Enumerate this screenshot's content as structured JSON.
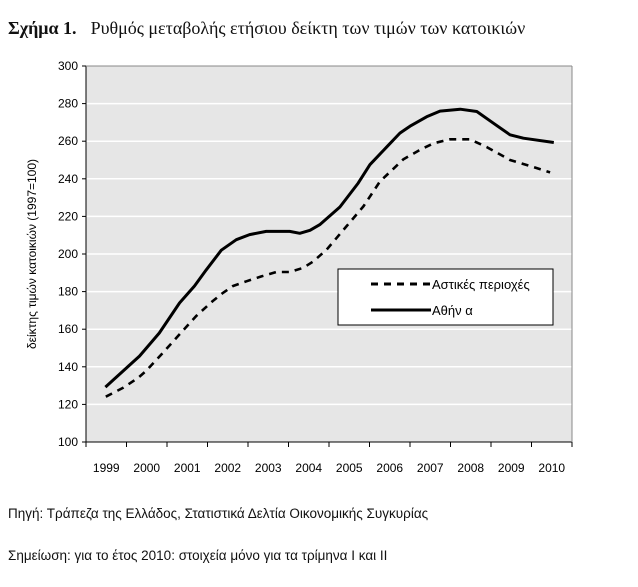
{
  "figure": {
    "label": "Σχήμα 1.",
    "title": "Ρυθμός μεταβολής ετήσιου δείκτη των τιμών των κατοικιών",
    "source": "Πηγή: Τράπεζα της Ελλάδος, Στατιστικά Δελτία Οικονομικής Συγκυρίας",
    "note": "Σημείωση:  για το έτος 2010: στοιχεία μόνο για τα τρίμηνα Ι και ΙΙ"
  },
  "chart_data": {
    "type": "line",
    "title": "",
    "xlabel": "",
    "ylabel": "δείκτης τιμών κατοικιών (1997=100)",
    "ylim": [
      100,
      300
    ],
    "yticks": [
      "100",
      "120",
      "140",
      "160",
      "180",
      "200",
      "220",
      "240",
      "260",
      "280",
      "300"
    ],
    "categories": [
      "1999",
      "2000",
      "2001",
      "2002",
      "2003",
      "2004",
      "2005",
      "2006",
      "2007",
      "2008",
      "2009",
      "2010"
    ],
    "xlim": [
      1999,
      2011
    ],
    "grid": true,
    "background": "#e6e6e6",
    "legend_position": "center-right",
    "series": [
      {
        "name": "Αστικές περιοχές",
        "style": "dashed",
        "color": "#000000",
        "x": [
          1999.49,
          1999.91,
          2000.28,
          2000.48,
          2000.9,
          2001.31,
          2001.72,
          2002.13,
          2002.38,
          2002.63,
          2002.96,
          2003.33,
          2003.7,
          2004.03,
          2004.36,
          2004.61,
          2004.94,
          2005.43,
          2005.85,
          2006.26,
          2006.84,
          2007.25,
          2007.58,
          2007.99,
          2008.48,
          2008.9,
          2009.47,
          2010.05,
          2010.46
        ],
        "y": [
          124.1,
          128.8,
          134.0,
          137.7,
          147.5,
          157.3,
          167.0,
          175.0,
          179.3,
          183.0,
          185.5,
          188.1,
          190.4,
          190.4,
          192.6,
          196.0,
          202.3,
          214.7,
          225.3,
          238.6,
          250.4,
          255.4,
          258.9,
          261.0,
          261.0,
          256.8,
          250.0,
          246.2,
          243.4
        ]
      },
      {
        "name": "Αθήν α",
        "style": "solid",
        "color": "#000000",
        "x": [
          1999.48,
          2000.32,
          2000.81,
          2001.31,
          2001.68,
          2001.97,
          2002.34,
          2002.71,
          2003.04,
          2003.45,
          2004.03,
          2004.28,
          2004.53,
          2004.77,
          2005.27,
          2005.72,
          2006.01,
          2006.42,
          2006.75,
          2007.0,
          2007.41,
          2007.74,
          2008.24,
          2008.65,
          2009.06,
          2009.47,
          2009.8,
          2010.55
        ],
        "y": [
          129.2,
          145.7,
          158.0,
          174.0,
          183.0,
          191.6,
          202.0,
          207.6,
          210.3,
          212.0,
          212.0,
          211.0,
          212.6,
          215.6,
          225.0,
          237.7,
          247.5,
          256.8,
          264.3,
          268.0,
          273.0,
          276.0,
          277.0,
          275.8,
          269.6,
          263.4,
          261.6,
          259.3
        ]
      }
    ]
  }
}
